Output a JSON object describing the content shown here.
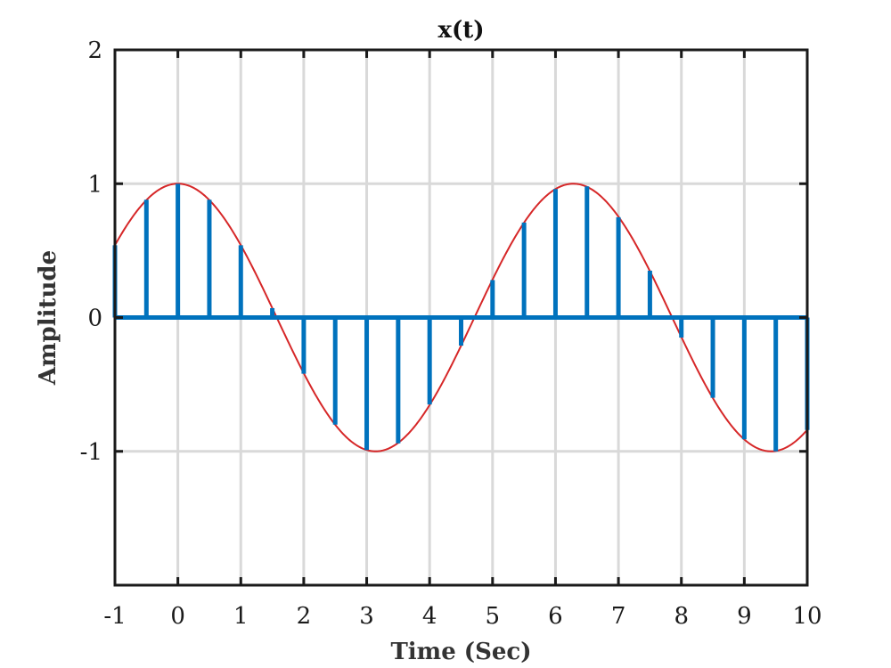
{
  "chart_data": {
    "type": "stem",
    "title": "x(t)",
    "xlabel": "Time (Sec)",
    "ylabel": "Amplitude",
    "xlim": [
      -1,
      10
    ],
    "ylim": [
      -2,
      2
    ],
    "x_ticks": [
      "-1",
      "0",
      "1",
      "2",
      "3",
      "4",
      "5",
      "6",
      "7",
      "8",
      "9",
      "10"
    ],
    "y_ticks": [
      "-1",
      "0",
      "1",
      "2"
    ],
    "grid": true,
    "series": [
      {
        "kind": "continuous",
        "function": "cos(t)",
        "color": "#d62728"
      },
      {
        "kind": "stem",
        "color": "#0072bd",
        "x": [
          -1,
          -0.5,
          0,
          0.5,
          1,
          1.5,
          2,
          2.5,
          3,
          3.5,
          4,
          4.5,
          5,
          5.5,
          6,
          6.5,
          7,
          7.5,
          8,
          8.5,
          9,
          9.5,
          10
        ],
        "y": [
          0.54,
          0.88,
          1.0,
          0.88,
          0.54,
          0.07,
          -0.42,
          -0.8,
          -0.99,
          -0.94,
          -0.65,
          -0.21,
          0.28,
          0.71,
          0.96,
          0.98,
          0.75,
          0.35,
          -0.15,
          -0.6,
          -0.91,
          -1.0,
          -0.84
        ]
      }
    ]
  }
}
